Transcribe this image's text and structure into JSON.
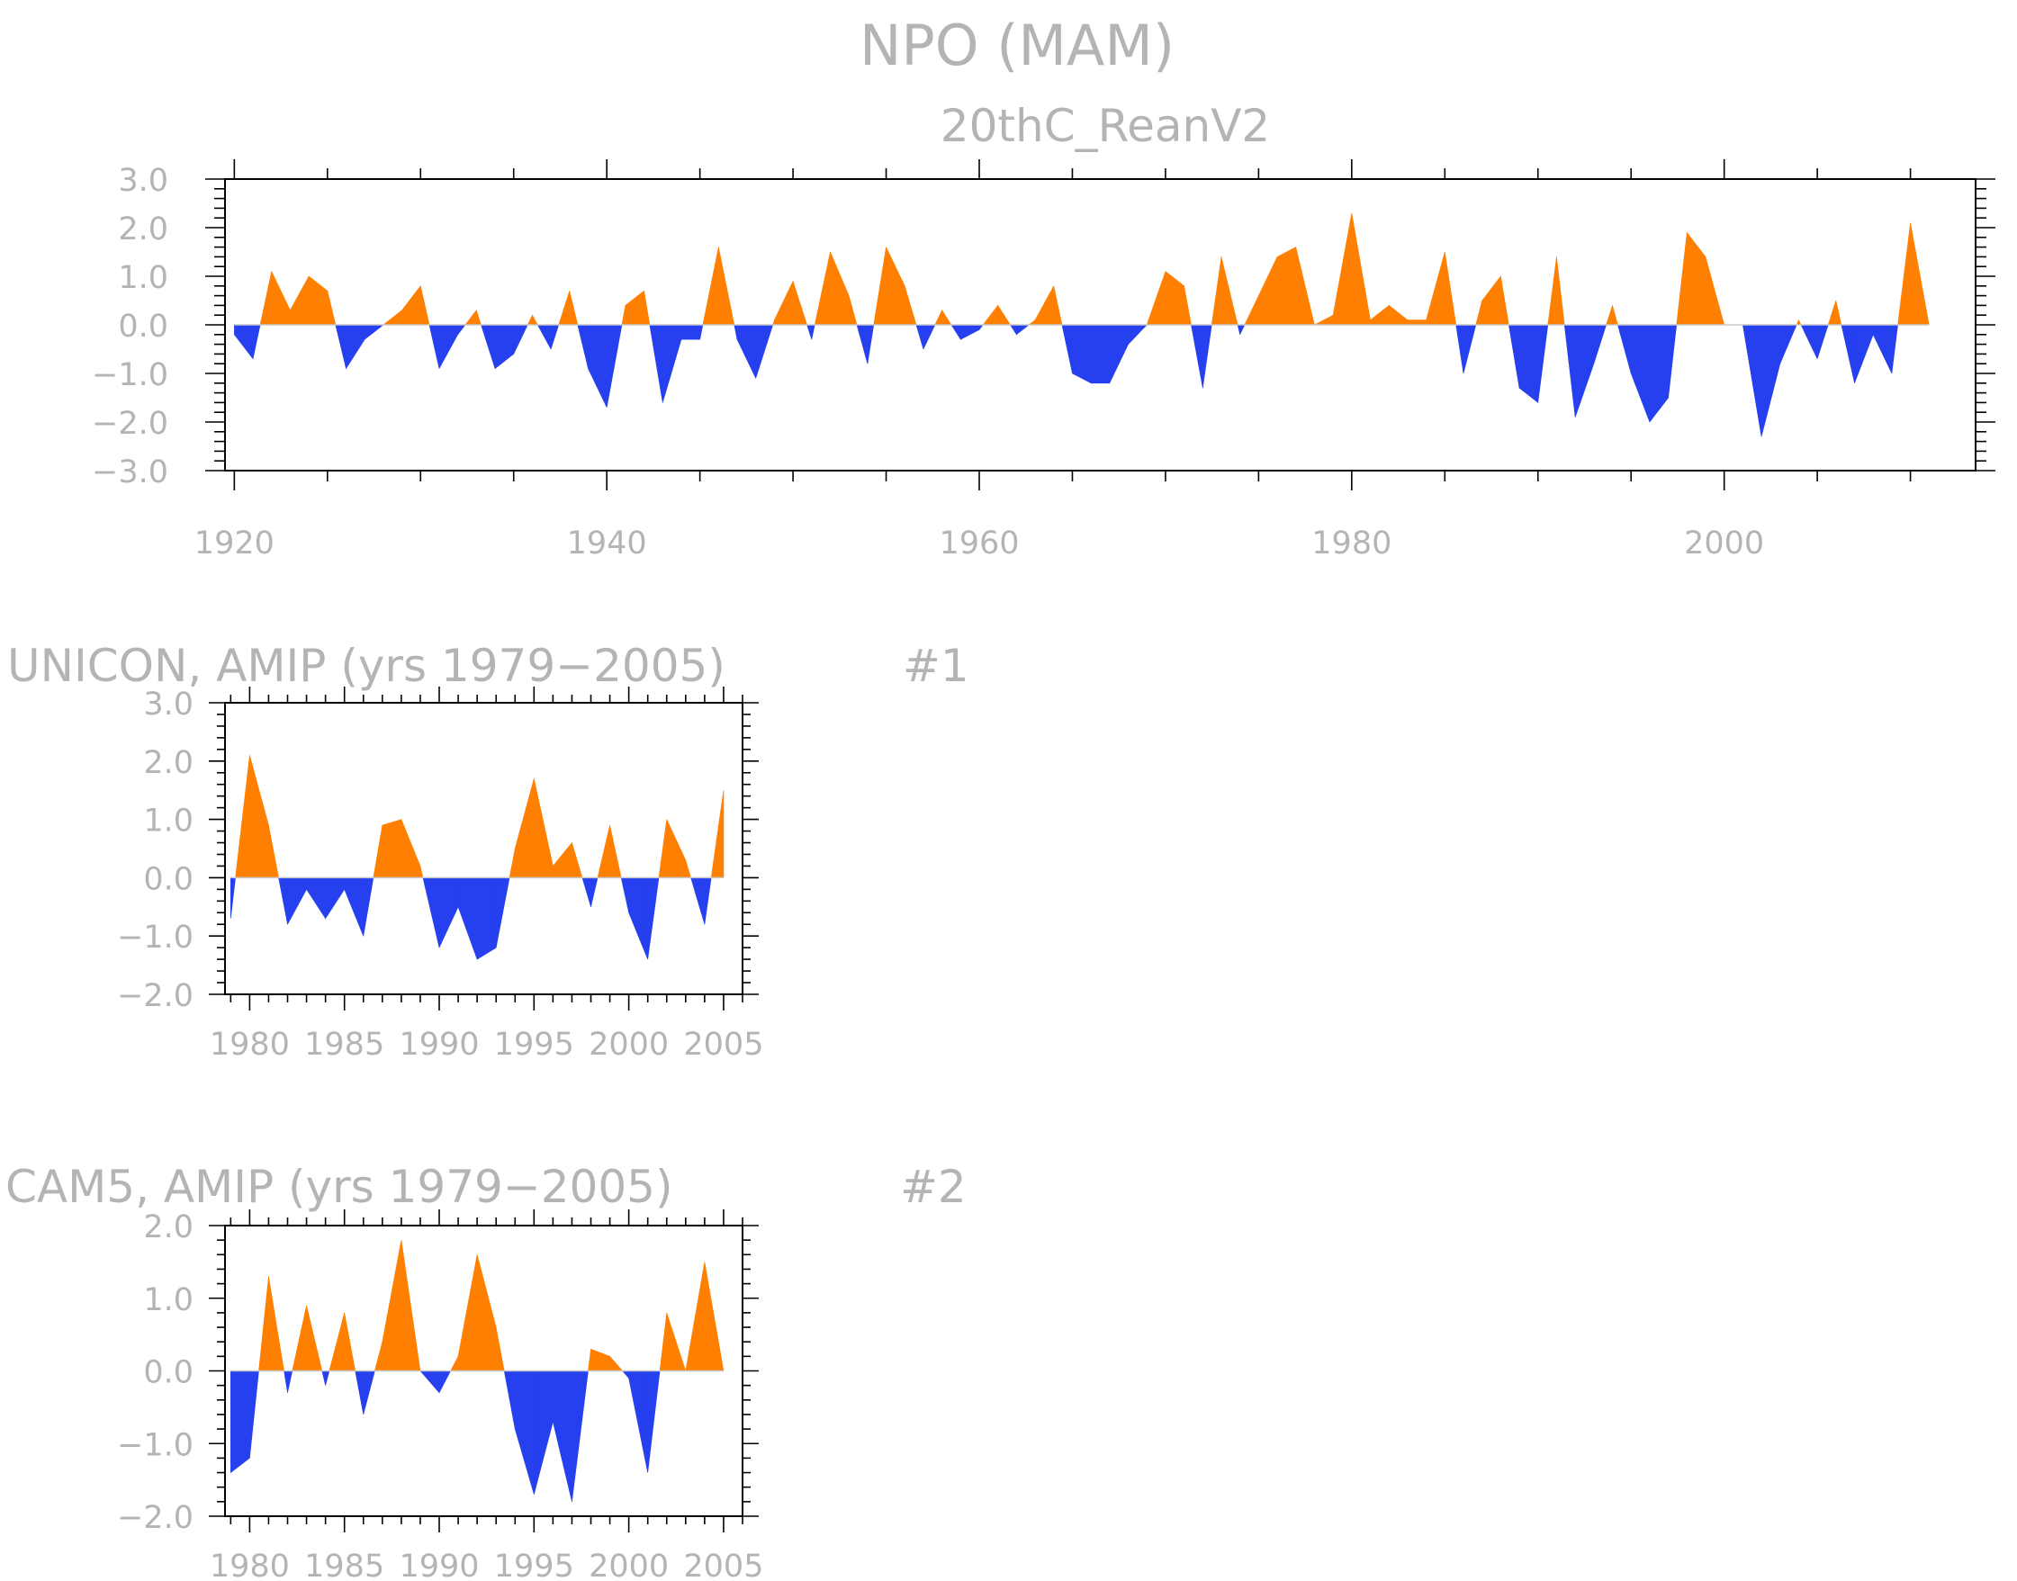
{
  "title": "NPO (MAM)",
  "subtitle": "20thC_ReanV2",
  "colors": {
    "positive": "#ff8000",
    "negative": "#2640f0",
    "text": "#b4b4b4",
    "axis": "#000000"
  },
  "chart_data": [
    {
      "type": "area",
      "title": "NPO (MAM)",
      "subtitle": "20thC_ReanV2",
      "xlim": [
        1919.5,
        2013.5
      ],
      "ylim": [
        -3,
        3
      ],
      "yticks": [
        "3.0",
        "2.0",
        "1.0",
        "0.0",
        "−1.0",
        "−2.0",
        "−3.0"
      ],
      "ytick_values": [
        3,
        2,
        1,
        0,
        -1,
        -2,
        -3
      ],
      "xticks": [
        "1920",
        "1940",
        "1960",
        "1980",
        "2000"
      ],
      "xtick_values": [
        1920,
        1940,
        1960,
        1980,
        2000
      ],
      "x_start": 1920,
      "values": [
        -0.2,
        -0.7,
        1.1,
        0.3,
        1.0,
        0.7,
        -0.9,
        -0.3,
        0.0,
        0.3,
        0.8,
        -0.9,
        -0.2,
        0.3,
        -0.9,
        -0.6,
        0.2,
        -0.5,
        0.7,
        -0.9,
        -1.7,
        0.4,
        0.7,
        -1.6,
        -0.3,
        -0.3,
        1.6,
        -0.3,
        -1.1,
        0.1,
        0.9,
        -0.3,
        1.5,
        0.6,
        -0.8,
        1.6,
        0.8,
        -0.5,
        0.3,
        -0.3,
        -0.1,
        0.4,
        -0.2,
        0.1,
        0.8,
        -1.0,
        -1.2,
        -1.2,
        -0.4,
        0.0,
        1.1,
        0.8,
        -1.3,
        1.4,
        -0.2,
        0.6,
        1.4,
        1.6,
        0.0,
        0.2,
        2.3,
        0.1,
        0.4,
        0.1,
        0.1,
        1.5,
        -1.0,
        0.5,
        1.0,
        -1.3,
        -1.6,
        1.4,
        -1.9,
        -0.8,
        0.4,
        -1.0,
        -2.0,
        -1.5,
        1.9,
        1.4,
        0.0,
        0.0,
        -2.3,
        -0.8,
        0.1,
        -0.7,
        0.5,
        -1.2,
        -0.2,
        -1.0,
        2.1,
        0.0
      ]
    },
    {
      "type": "area",
      "title": "UNICON, AMIP (yrs 1979−2005)",
      "label": "#1",
      "xlim": [
        1978.7,
        2006.0
      ],
      "ylim": [
        -2,
        3
      ],
      "yticks": [
        "3.0",
        "2.0",
        "1.0",
        "0.0",
        "−1.0",
        "−2.0"
      ],
      "ytick_values": [
        3,
        2,
        1,
        0,
        -1,
        -2
      ],
      "xticks": [
        "1980",
        "1985",
        "1990",
        "1995",
        "2000",
        "2005"
      ],
      "xtick_values": [
        1980,
        1985,
        1990,
        1995,
        2000,
        2005
      ],
      "x_start": 1979,
      "values": [
        -0.7,
        2.1,
        0.9,
        -0.8,
        -0.2,
        -0.7,
        -0.2,
        -1.0,
        0.9,
        1.0,
        0.2,
        -1.2,
        -0.5,
        -1.4,
        -1.2,
        0.5,
        1.7,
        0.2,
        0.6,
        -0.5,
        0.9,
        -0.6,
        -1.4,
        1.0,
        0.3,
        -0.8,
        1.5
      ]
    },
    {
      "type": "area",
      "title": "CAM5, AMIP (yrs 1979−2005)",
      "label": "#2",
      "xlim": [
        1978.7,
        2006.0
      ],
      "ylim": [
        -2,
        2
      ],
      "yticks": [
        "2.0",
        "1.0",
        "0.0",
        "−1.0",
        "−2.0"
      ],
      "ytick_values": [
        2,
        1,
        0,
        -1,
        -2
      ],
      "xticks": [
        "1980",
        "1985",
        "1990",
        "1995",
        "2000",
        "2005"
      ],
      "xtick_values": [
        1980,
        1985,
        1990,
        1995,
        2000,
        2005
      ],
      "x_start": 1979,
      "values": [
        -1.4,
        -1.2,
        1.3,
        -0.3,
        0.9,
        -0.2,
        0.8,
        -0.6,
        0.4,
        1.8,
        0.0,
        -0.3,
        0.2,
        1.6,
        0.6,
        -0.8,
        -1.7,
        -0.7,
        -1.8,
        0.3,
        0.2,
        -0.1,
        -1.4,
        0.8,
        0.0,
        1.5,
        0.0
      ]
    }
  ]
}
